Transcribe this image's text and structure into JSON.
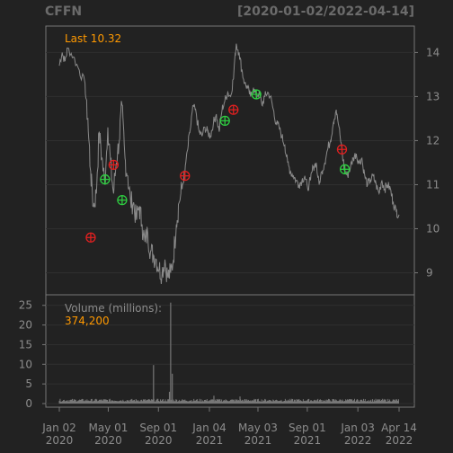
{
  "header": {
    "symbol": "CFFN",
    "range": "[2020-01-02/2022-04-14]"
  },
  "colors": {
    "background": "#222222",
    "panel_border": "#777777",
    "grid": "#2f2f2f",
    "price_line": "#8a8a8a",
    "volume_bars": "#777777",
    "axis_text": "#8c8c8c",
    "highlight": "#ff9900",
    "buy_marker": "#2ecc40",
    "sell_marker": "#e02020"
  },
  "chart_data": {
    "type": "line",
    "price_panel": {
      "legend_label": "Last",
      "legend_value": "10.32",
      "y_ticks": [
        9,
        10,
        11,
        12,
        13,
        14
      ],
      "ylim": [
        8.5,
        14.6
      ],
      "x_range": [
        "2020-01-02",
        "2022-04-14"
      ],
      "series": [
        {
          "points": [
            [
              "2020-01-02",
              13.7
            ],
            [
              "2020-01-09",
              14.0
            ],
            [
              "2020-01-16",
              13.8
            ],
            [
              "2020-01-23",
              14.1
            ],
            [
              "2020-02-06",
              13.9
            ],
            [
              "2020-02-20",
              13.6
            ],
            [
              "2020-03-05",
              13.3
            ],
            [
              "2020-03-12",
              12.5
            ],
            [
              "2020-03-19",
              11.3
            ],
            [
              "2020-03-26",
              10.5
            ],
            [
              "2020-04-02",
              10.8
            ],
            [
              "2020-04-09",
              12.2
            ],
            [
              "2020-04-16",
              11.6
            ],
            [
              "2020-04-23",
              11.0
            ],
            [
              "2020-04-30",
              12.3
            ],
            [
              "2020-05-07",
              11.5
            ],
            [
              "2020-05-14",
              10.8
            ],
            [
              "2020-05-21",
              11.5
            ],
            [
              "2020-05-28",
              12.0
            ],
            [
              "2020-06-04",
              12.8
            ],
            [
              "2020-06-11",
              11.6
            ],
            [
              "2020-06-18",
              11.2
            ],
            [
              "2020-06-25",
              10.6
            ],
            [
              "2020-07-02",
              10.6
            ],
            [
              "2020-07-09",
              10.2
            ],
            [
              "2020-07-16",
              10.5
            ],
            [
              "2020-07-23",
              10.1
            ],
            [
              "2020-07-30",
              9.7
            ],
            [
              "2020-08-06",
              9.9
            ],
            [
              "2020-08-13",
              9.5
            ],
            [
              "2020-08-20",
              9.4
            ],
            [
              "2020-08-27",
              9.3
            ],
            [
              "2020-09-03",
              9.1
            ],
            [
              "2020-09-10",
              9.0
            ],
            [
              "2020-09-17",
              9.3
            ],
            [
              "2020-09-24",
              8.9
            ],
            [
              "2020-10-01",
              9.0
            ],
            [
              "2020-10-08",
              9.3
            ],
            [
              "2020-10-15",
              10.1
            ],
            [
              "2020-10-22",
              10.6
            ],
            [
              "2020-10-29",
              10.9
            ],
            [
              "2020-11-05",
              11.3
            ],
            [
              "2020-11-12",
              11.8
            ],
            [
              "2020-11-19",
              12.3
            ],
            [
              "2020-11-26",
              12.8
            ],
            [
              "2020-12-03",
              12.6
            ],
            [
              "2020-12-10",
              12.2
            ],
            [
              "2020-12-17",
              12.1
            ],
            [
              "2020-12-24",
              12.3
            ],
            [
              "2020-12-31",
              12.2
            ],
            [
              "2021-01-07",
              12.1
            ],
            [
              "2021-01-14",
              12.4
            ],
            [
              "2021-01-21",
              12.6
            ],
            [
              "2021-01-28",
              12.2
            ],
            [
              "2021-02-04",
              12.7
            ],
            [
              "2021-02-11",
              12.9
            ],
            [
              "2021-02-18",
              13.1
            ],
            [
              "2021-02-25",
              13.0
            ],
            [
              "2021-03-04",
              13.4
            ],
            [
              "2021-03-11",
              14.2
            ],
            [
              "2021-03-18",
              14.0
            ],
            [
              "2021-03-25",
              13.6
            ],
            [
              "2021-04-01",
              13.3
            ],
            [
              "2021-04-08",
              13.2
            ],
            [
              "2021-04-15",
              13.0
            ],
            [
              "2021-04-22",
              13.2
            ],
            [
              "2021-04-29",
              13.0
            ],
            [
              "2021-05-06",
              13.1
            ],
            [
              "2021-05-13",
              12.8
            ],
            [
              "2021-05-20",
              13.0
            ],
            [
              "2021-05-27",
              13.1
            ],
            [
              "2021-06-03",
              13.0
            ],
            [
              "2021-06-10",
              12.7
            ],
            [
              "2021-06-17",
              12.4
            ],
            [
              "2021-06-24",
              12.3
            ],
            [
              "2021-07-01",
              12.1
            ],
            [
              "2021-07-08",
              11.9
            ],
            [
              "2021-07-15",
              11.5
            ],
            [
              "2021-07-22",
              11.3
            ],
            [
              "2021-07-29",
              11.2
            ],
            [
              "2021-08-05",
              11.1
            ],
            [
              "2021-08-12",
              11.0
            ],
            [
              "2021-08-19",
              11.1
            ],
            [
              "2021-08-26",
              11.2
            ],
            [
              "2021-09-02",
              10.9
            ],
            [
              "2021-09-09",
              11.1
            ],
            [
              "2021-09-16",
              11.4
            ],
            [
              "2021-09-23",
              11.5
            ],
            [
              "2021-09-30",
              11.0
            ],
            [
              "2021-10-07",
              11.3
            ],
            [
              "2021-10-14",
              11.5
            ],
            [
              "2021-10-21",
              11.8
            ],
            [
              "2021-10-28",
              12.0
            ],
            [
              "2021-11-04",
              12.4
            ],
            [
              "2021-11-11",
              12.7
            ],
            [
              "2021-11-18",
              12.3
            ],
            [
              "2021-11-25",
              11.8
            ],
            [
              "2021-12-02",
              11.3
            ],
            [
              "2021-12-09",
              11.2
            ],
            [
              "2021-12-16",
              11.4
            ],
            [
              "2021-12-23",
              11.6
            ],
            [
              "2021-12-30",
              11.7
            ],
            [
              "2022-01-06",
              11.5
            ],
            [
              "2022-01-13",
              11.6
            ],
            [
              "2022-01-20",
              11.2
            ],
            [
              "2022-01-27",
              11.0
            ],
            [
              "2022-02-03",
              11.1
            ],
            [
              "2022-02-10",
              11.2
            ],
            [
              "2022-02-17",
              11.0
            ],
            [
              "2022-02-24",
              10.8
            ],
            [
              "2022-03-03",
              11.1
            ],
            [
              "2022-03-10",
              10.9
            ],
            [
              "2022-03-17",
              11.0
            ],
            [
              "2022-03-24",
              10.9
            ],
            [
              "2022-03-31",
              10.6
            ],
            [
              "2022-04-07",
              10.4
            ],
            [
              "2022-04-14",
              10.32
            ]
          ]
        }
      ],
      "buy_signals": [
        [
          "2020-04-23",
          11.12
        ],
        [
          "2020-06-04",
          10.65
        ],
        [
          "2021-02-11",
          12.45
        ],
        [
          "2021-04-29",
          13.05
        ],
        [
          "2021-12-02",
          11.35
        ]
      ],
      "sell_signals": [
        [
          "2020-03-19",
          9.8
        ],
        [
          "2020-05-14",
          11.45
        ],
        [
          "2020-11-05",
          11.2
        ],
        [
          "2021-03-04",
          12.7
        ],
        [
          "2021-11-25",
          11.8
        ]
      ]
    },
    "volume_panel": {
      "label": "Volume (millions):",
      "last_value": "374,200",
      "y_ticks": [
        0,
        5,
        10,
        15,
        20,
        25
      ],
      "ylim": [
        0,
        27
      ],
      "baseline": 0.5,
      "spikes": [
        [
          "2020-08-20",
          9.8
        ],
        [
          "2020-10-01",
          25.7
        ],
        [
          "2020-10-05",
          7.6
        ],
        [
          "2020-09-28",
          3.0
        ],
        [
          "2021-01-15",
          2.0
        ],
        [
          "2021-03-20",
          1.8
        ]
      ]
    },
    "x_ticks": [
      {
        "date": "2020-01-02",
        "line1": "Jan 02",
        "line2": "2020"
      },
      {
        "date": "2020-05-01",
        "line1": "May 01",
        "line2": "2020"
      },
      {
        "date": "2020-09-01",
        "line1": "Sep 01",
        "line2": "2020"
      },
      {
        "date": "2021-01-04",
        "line1": "Jan 04",
        "line2": "2021"
      },
      {
        "date": "2021-05-03",
        "line1": "May 03",
        "line2": "2021"
      },
      {
        "date": "2021-09-01",
        "line1": "Sep 01",
        "line2": "2021"
      },
      {
        "date": "2022-01-03",
        "line1": "Jan 03",
        "line2": "2022"
      },
      {
        "date": "2022-04-14",
        "line1": "Apr 14",
        "line2": "2022"
      }
    ]
  }
}
